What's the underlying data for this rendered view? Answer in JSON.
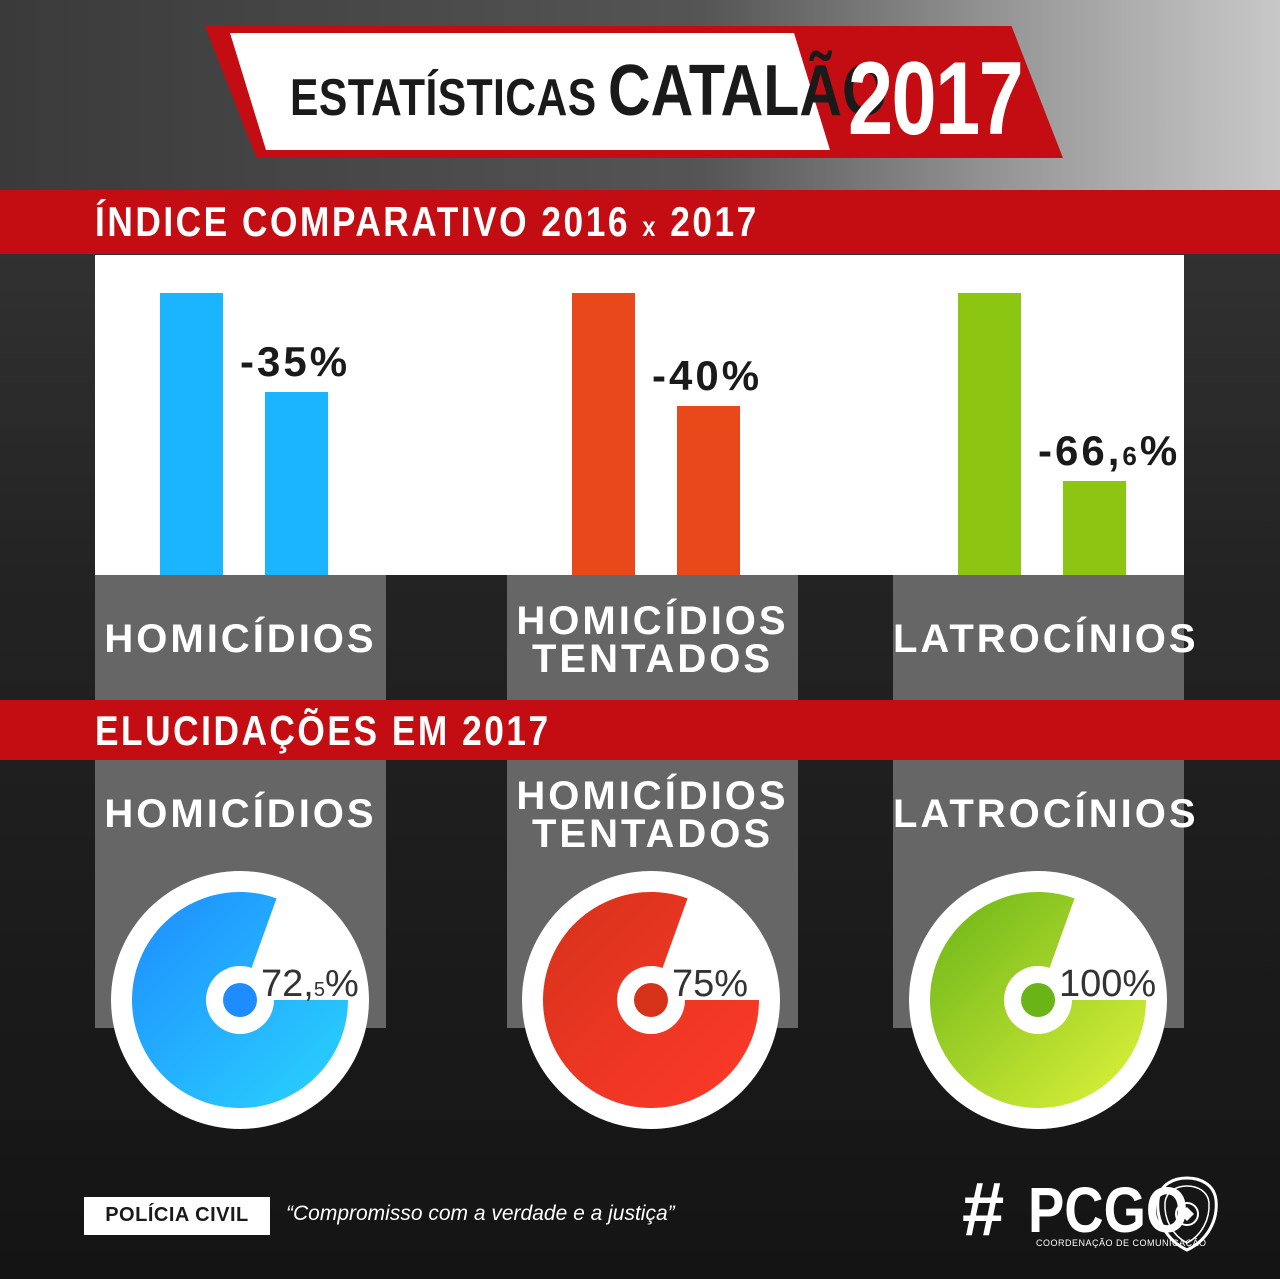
{
  "title": {
    "prefix": "ESTATÍSTICAS",
    "city": "CATALÃO",
    "year": "2017"
  },
  "section1": {
    "heading_main": "ÍNDICE COMPARATIVO 2016 ",
    "heading_x": "x",
    "heading_end": " 2017"
  },
  "section2": {
    "heading": "ELUCIDAÇÕES EM 2017"
  },
  "chart_data": [
    {
      "type": "bar",
      "title": "ÍNDICE COMPARATIVO 2016 x 2017",
      "categories": [
        "HOMICÍDIOS",
        "HOMICÍDIOS TENTADOS",
        "LATROCÍNIOS"
      ],
      "category_lines": [
        [
          "HOMICÍDIOS"
        ],
        [
          "HOMICÍDIOS",
          "TENTADOS"
        ],
        [
          "LATROCÍNIOS"
        ]
      ],
      "series": [
        {
          "values": [
            100,
            100,
            100
          ]
        },
        {
          "values": [
            65,
            60,
            33.4
          ]
        }
      ],
      "change_labels": [
        {
          "main": "-35",
          "dec": "",
          "suffix": "%"
        },
        {
          "main": "-40",
          "dec": "",
          "suffix": "%"
        },
        {
          "main": "-66,",
          "dec": "6",
          "suffix": "%"
        }
      ],
      "colors": [
        "#1ab4ff",
        "#e8481a",
        "#8cc612"
      ],
      "ylim": [
        0,
        100
      ]
    },
    {
      "type": "pie",
      "title": "ELUCIDAÇÕES EM 2017",
      "categories": [
        "HOMICÍDIOS",
        "HOMICÍDIOS TENTADOS",
        "LATROCÍNIOS"
      ],
      "values": [
        72.5,
        75,
        100
      ],
      "value_labels": [
        {
          "main": "72,",
          "dec": "5",
          "suffix": "%"
        },
        {
          "main": "75%",
          "dec": "",
          "suffix": ""
        },
        {
          "main": "100%",
          "dec": "",
          "suffix": ""
        }
      ],
      "gradients": [
        [
          "#1e8cff",
          "#2ad4ff"
        ],
        [
          "#d6321a",
          "#ff3a2a"
        ],
        [
          "#6ab418",
          "#e0f43a"
        ]
      ]
    }
  ],
  "footer": {
    "badge": "POLÍCIA CIVIL",
    "motto": "“Compromisso com a verdade e a justiça”",
    "logo_hash": "#",
    "logo_text": "PCGO",
    "logo_sub": "COORDENAÇÃO DE COMUNICAÇÃO",
    "seal_icon": "police-badge-icon"
  }
}
